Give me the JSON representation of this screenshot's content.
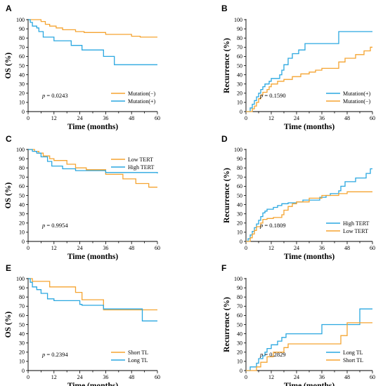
{
  "colors": {
    "orange": "#F5A431",
    "blue": "#2AA7E0"
  },
  "chart_data": [
    {
      "panel": "A",
      "type": "line",
      "xlabel": "Time (months)",
      "ylabel": "OS (%)",
      "xlim": [
        0,
        60
      ],
      "ylim": [
        0,
        100
      ],
      "xticks": [
        0,
        12,
        24,
        36,
        48,
        60
      ],
      "yticks": [
        0,
        10,
        20,
        30,
        40,
        50,
        60,
        70,
        80,
        90,
        100
      ],
      "p_prefix": "p",
      "p_value": " = 0.0243",
      "legend": [
        "Mutation(−)",
        "Mutation(+)"
      ],
      "series": [
        {
          "name": "Mutation(−)",
          "color": "orange",
          "steps": [
            [
              0,
              100
            ],
            [
              6,
              98
            ],
            [
              8,
              95
            ],
            [
              10,
              93
            ],
            [
              13,
              91
            ],
            [
              16,
              89
            ],
            [
              22,
              87
            ],
            [
              26,
              86
            ],
            [
              36,
              84
            ],
            [
              48,
              82
            ],
            [
              52,
              81
            ],
            [
              60,
              81
            ]
          ]
        },
        {
          "name": "Mutation(+)",
          "color": "blue",
          "steps": [
            [
              0,
              100
            ],
            [
              1,
              97
            ],
            [
              2,
              93
            ],
            [
              4,
              91
            ],
            [
              5,
              87
            ],
            [
              7,
              81
            ],
            [
              12,
              77
            ],
            [
              20,
              72
            ],
            [
              25,
              67
            ],
            [
              35,
              60
            ],
            [
              40,
              51
            ],
            [
              60,
              51
            ]
          ]
        }
      ]
    },
    {
      "panel": "B",
      "type": "line",
      "xlabel": "Time (months)",
      "ylabel": "Recurrence (%)",
      "xlim": [
        0,
        60
      ],
      "ylim": [
        0,
        100
      ],
      "xticks": [
        0,
        12,
        24,
        36,
        48,
        60
      ],
      "yticks": [
        0,
        10,
        20,
        30,
        40,
        50,
        60,
        70,
        80,
        90,
        100
      ],
      "p_prefix": "p",
      "p_value": " = 0.1590",
      "legend": [
        "Mutation(+)",
        "Mutation(−)"
      ],
      "series": [
        {
          "name": "Mutation(+)",
          "color": "blue",
          "steps": [
            [
              0,
              0
            ],
            [
              2,
              4
            ],
            [
              3,
              8
            ],
            [
              4,
              12
            ],
            [
              5,
              16
            ],
            [
              6,
              20
            ],
            [
              7,
              24
            ],
            [
              8,
              27
            ],
            [
              9,
              30
            ],
            [
              11,
              33
            ],
            [
              12,
              36
            ],
            [
              16,
              40
            ],
            [
              17,
              45
            ],
            [
              18,
              51
            ],
            [
              20,
              58
            ],
            [
              22,
              63
            ],
            [
              25,
              67
            ],
            [
              28,
              74
            ],
            [
              44,
              87
            ],
            [
              60,
              87
            ]
          ]
        },
        {
          "name": "Mutation(−)",
          "color": "orange",
          "steps": [
            [
              0,
              0
            ],
            [
              3,
              3
            ],
            [
              4,
              6
            ],
            [
              5,
              10
            ],
            [
              6,
              14
            ],
            [
              7,
              18
            ],
            [
              8,
              21
            ],
            [
              10,
              24
            ],
            [
              11,
              27
            ],
            [
              12,
              30
            ],
            [
              15,
              33
            ],
            [
              18,
              35
            ],
            [
              22,
              38
            ],
            [
              26,
              41
            ],
            [
              30,
              43
            ],
            [
              33,
              45
            ],
            [
              36,
              47
            ],
            [
              44,
              54
            ],
            [
              47,
              58
            ],
            [
              52,
              62
            ],
            [
              56,
              66
            ],
            [
              59,
              70
            ],
            [
              60,
              70
            ]
          ]
        }
      ]
    },
    {
      "panel": "C",
      "type": "line",
      "xlabel": "Time (months)",
      "ylabel": "OS (%)",
      "xlim": [
        0,
        60
      ],
      "ylim": [
        0,
        100
      ],
      "xticks": [
        0,
        12,
        24,
        36,
        48,
        60
      ],
      "yticks": [
        0,
        10,
        20,
        30,
        40,
        50,
        60,
        70,
        80,
        90,
        100
      ],
      "p_prefix": "p",
      "p_value": " = 0.9954",
      "legend": [
        "Low TERT",
        "High TERT"
      ],
      "series": [
        {
          "name": "Low TERT",
          "color": "orange",
          "steps": [
            [
              0,
              100
            ],
            [
              3,
              98
            ],
            [
              5,
              96
            ],
            [
              7,
              93
            ],
            [
              10,
              90
            ],
            [
              12,
              88
            ],
            [
              18,
              84
            ],
            [
              22,
              80
            ],
            [
              27,
              78
            ],
            [
              36,
              73
            ],
            [
              44,
              68
            ],
            [
              50,
              63
            ],
            [
              56,
              59
            ],
            [
              60,
              59
            ]
          ]
        },
        {
          "name": "High TERT",
          "color": "blue",
          "steps": [
            [
              0,
              100
            ],
            [
              2,
              98
            ],
            [
              4,
              96
            ],
            [
              6,
              92
            ],
            [
              9,
              87
            ],
            [
              11,
              82
            ],
            [
              16,
              79
            ],
            [
              22,
              77
            ],
            [
              36,
              75
            ],
            [
              60,
              74
            ]
          ]
        }
      ]
    },
    {
      "panel": "D",
      "type": "line",
      "xlabel": "Time (months)",
      "ylabel": "Recurrence (%)",
      "xlim": [
        0,
        60
      ],
      "ylim": [
        0,
        100
      ],
      "xticks": [
        0,
        12,
        24,
        36,
        48,
        60
      ],
      "yticks": [
        0,
        10,
        20,
        30,
        40,
        50,
        60,
        70,
        80,
        90,
        100
      ],
      "p_prefix": "p",
      "p_value": " = 0.1809",
      "legend": [
        "High TERT",
        "Low TERT"
      ],
      "series": [
        {
          "name": "High TERT",
          "color": "blue",
          "steps": [
            [
              0,
              0
            ],
            [
              1,
              3
            ],
            [
              2,
              7
            ],
            [
              3,
              11
            ],
            [
              4,
              15
            ],
            [
              5,
              19
            ],
            [
              6,
              23
            ],
            [
              7,
              27
            ],
            [
              8,
              31
            ],
            [
              9,
              33
            ],
            [
              10,
              35
            ],
            [
              13,
              37
            ],
            [
              15,
              39
            ],
            [
              17,
              41
            ],
            [
              20,
              42
            ],
            [
              24,
              43
            ],
            [
              27,
              45
            ],
            [
              35,
              48
            ],
            [
              38,
              50
            ],
            [
              40,
              52
            ],
            [
              44,
              55
            ],
            [
              45,
              60
            ],
            [
              47,
              65
            ],
            [
              52,
              69
            ],
            [
              57,
              74
            ],
            [
              59,
              79
            ],
            [
              60,
              79
            ]
          ]
        },
        {
          "name": "Low TERT",
          "color": "orange",
          "steps": [
            [
              0,
              0
            ],
            [
              2,
              4
            ],
            [
              3,
              8
            ],
            [
              4,
              12
            ],
            [
              5,
              16
            ],
            [
              7,
              20
            ],
            [
              8,
              24
            ],
            [
              10,
              25
            ],
            [
              13,
              26
            ],
            [
              17,
              29
            ],
            [
              18,
              34
            ],
            [
              20,
              38
            ],
            [
              22,
              41
            ],
            [
              24,
              43
            ],
            [
              30,
              47
            ],
            [
              36,
              50
            ],
            [
              44,
              52
            ],
            [
              48,
              54
            ],
            [
              60,
              54
            ]
          ]
        }
      ]
    },
    {
      "panel": "E",
      "type": "line",
      "xlabel": "Time (months)",
      "ylabel": "OS (%)",
      "xlim": [
        0,
        60
      ],
      "ylim": [
        0,
        100
      ],
      "xticks": [
        0,
        12,
        24,
        36,
        48,
        60
      ],
      "yticks": [
        0,
        10,
        20,
        30,
        40,
        50,
        60,
        70,
        80,
        90,
        100
      ],
      "p_prefix": "p",
      "p_value": " = 0.2394",
      "legend": [
        "Short TL",
        "Long TL"
      ],
      "series": [
        {
          "name": "Short TL",
          "color": "orange",
          "steps": [
            [
              0,
              100
            ],
            [
              2,
              97
            ],
            [
              10,
              91
            ],
            [
              22,
              85
            ],
            [
              25,
              77
            ],
            [
              35,
              66
            ],
            [
              60,
              66
            ]
          ]
        },
        {
          "name": "Long TL",
          "color": "blue",
          "steps": [
            [
              0,
              100
            ],
            [
              1,
              96
            ],
            [
              2,
              91
            ],
            [
              4,
              88
            ],
            [
              6,
              84
            ],
            [
              9,
              78
            ],
            [
              12,
              76
            ],
            [
              24,
              72
            ],
            [
              25,
              71
            ],
            [
              35,
              67
            ],
            [
              52,
              67
            ],
            [
              53,
              54
            ],
            [
              60,
              54
            ]
          ]
        }
      ]
    },
    {
      "panel": "F",
      "type": "line",
      "xlabel": "Time (months)",
      "ylabel": "Recurrence (%)",
      "xlim": [
        0,
        60
      ],
      "ylim": [
        0,
        100
      ],
      "xticks": [
        0,
        12,
        24,
        36,
        48,
        60
      ],
      "yticks": [
        0,
        10,
        20,
        30,
        40,
        50,
        60,
        70,
        80,
        90,
        100
      ],
      "p_prefix": "p",
      "p_value": " = 0.2829",
      "legend": [
        "Long TL",
        "Short TL"
      ],
      "series": [
        {
          "name": "Long TL",
          "color": "blue",
          "steps": [
            [
              0,
              0
            ],
            [
              2,
              4
            ],
            [
              5,
              8
            ],
            [
              6,
              13
            ],
            [
              8,
              16
            ],
            [
              9,
              20
            ],
            [
              10,
              24
            ],
            [
              12,
              28
            ],
            [
              15,
              32
            ],
            [
              17,
              36
            ],
            [
              19,
              40
            ],
            [
              36,
              50
            ],
            [
              53,
              50
            ],
            [
              54,
              67
            ],
            [
              60,
              67
            ]
          ]
        },
        {
          "name": "Short TL",
          "color": "orange",
          "steps": [
            [
              0,
              0
            ],
            [
              5,
              4
            ],
            [
              7,
              9
            ],
            [
              10,
              15
            ],
            [
              13,
              20
            ],
            [
              18,
              25
            ],
            [
              20,
              29
            ],
            [
              35,
              29
            ],
            [
              45,
              38
            ],
            [
              48,
              52
            ],
            [
              60,
              52
            ]
          ]
        }
      ]
    }
  ]
}
